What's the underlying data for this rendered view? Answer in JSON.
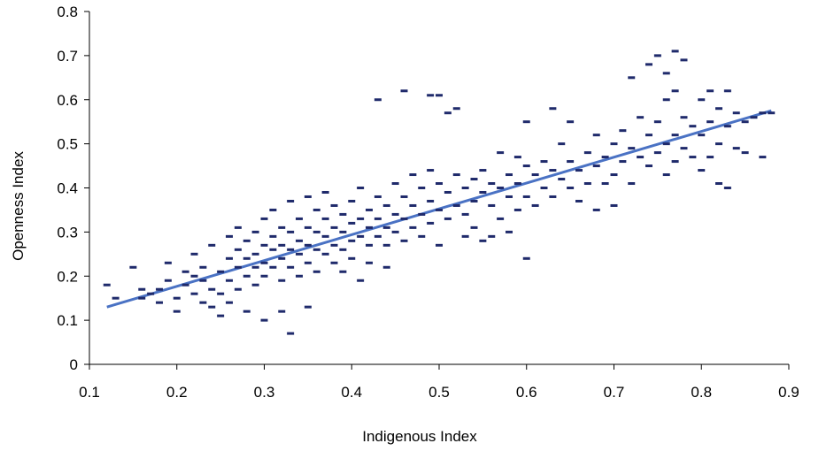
{
  "chart_data": {
    "type": "scatter",
    "xlabel": "Indigenous Index",
    "ylabel": "Openness Index",
    "xlim": [
      0.1,
      0.9
    ],
    "ylim": [
      0,
      0.8
    ],
    "x_ticks": [
      0.1,
      0.2,
      0.3,
      0.4,
      0.5,
      0.6,
      0.7,
      0.8,
      0.9
    ],
    "x_tick_labels": [
      "0.1",
      "0.2",
      "0.3",
      "0.4",
      "0.5",
      "0.6",
      "0.7",
      "0.8",
      "0.9"
    ],
    "y_ticks": [
      0,
      0.1,
      0.2,
      0.3,
      0.4,
      0.5,
      0.6,
      0.7,
      0.8
    ],
    "y_tick_labels": [
      "0",
      "0.1",
      "0.2",
      "0.3",
      "0.4",
      "0.5",
      "0.6",
      "0.7",
      "0.8"
    ],
    "grid": false,
    "legend": "none",
    "point_color": "#1f2a6b",
    "trend_color": "#4a72c4",
    "trendline": {
      "x": [
        0.12,
        0.88
      ],
      "y": [
        0.13,
        0.575
      ]
    },
    "points": [
      [
        0.12,
        0.18
      ],
      [
        0.13,
        0.15
      ],
      [
        0.15,
        0.22
      ],
      [
        0.16,
        0.17
      ],
      [
        0.16,
        0.15
      ],
      [
        0.17,
        0.16
      ],
      [
        0.18,
        0.17
      ],
      [
        0.18,
        0.14
      ],
      [
        0.19,
        0.23
      ],
      [
        0.19,
        0.19
      ],
      [
        0.2,
        0.15
      ],
      [
        0.2,
        0.12
      ],
      [
        0.21,
        0.21
      ],
      [
        0.21,
        0.18
      ],
      [
        0.22,
        0.2
      ],
      [
        0.22,
        0.16
      ],
      [
        0.22,
        0.25
      ],
      [
        0.23,
        0.19
      ],
      [
        0.23,
        0.14
      ],
      [
        0.23,
        0.22
      ],
      [
        0.24,
        0.17
      ],
      [
        0.24,
        0.13
      ],
      [
        0.24,
        0.27
      ],
      [
        0.25,
        0.21
      ],
      [
        0.25,
        0.16
      ],
      [
        0.25,
        0.11
      ],
      [
        0.26,
        0.24
      ],
      [
        0.26,
        0.19
      ],
      [
        0.26,
        0.29
      ],
      [
        0.26,
        0.14
      ],
      [
        0.27,
        0.31
      ],
      [
        0.27,
        0.22
      ],
      [
        0.27,
        0.26
      ],
      [
        0.27,
        0.17
      ],
      [
        0.28,
        0.28
      ],
      [
        0.28,
        0.2
      ],
      [
        0.28,
        0.24
      ],
      [
        0.28,
        0.12
      ],
      [
        0.29,
        0.3
      ],
      [
        0.29,
        0.25
      ],
      [
        0.29,
        0.22
      ],
      [
        0.29,
        0.18
      ],
      [
        0.3,
        0.33
      ],
      [
        0.3,
        0.27
      ],
      [
        0.3,
        0.23
      ],
      [
        0.3,
        0.2
      ],
      [
        0.3,
        0.1
      ],
      [
        0.31,
        0.29
      ],
      [
        0.31,
        0.26
      ],
      [
        0.31,
        0.22
      ],
      [
        0.31,
        0.35
      ],
      [
        0.32,
        0.31
      ],
      [
        0.32,
        0.27
      ],
      [
        0.32,
        0.24
      ],
      [
        0.32,
        0.19
      ],
      [
        0.32,
        0.12
      ],
      [
        0.33,
        0.37
      ],
      [
        0.33,
        0.3
      ],
      [
        0.33,
        0.26
      ],
      [
        0.33,
        0.22
      ],
      [
        0.33,
        0.07
      ],
      [
        0.34,
        0.33
      ],
      [
        0.34,
        0.28
      ],
      [
        0.34,
        0.25
      ],
      [
        0.34,
        0.2
      ],
      [
        0.35,
        0.38
      ],
      [
        0.35,
        0.31
      ],
      [
        0.35,
        0.27
      ],
      [
        0.35,
        0.23
      ],
      [
        0.35,
        0.13
      ],
      [
        0.36,
        0.35
      ],
      [
        0.36,
        0.3
      ],
      [
        0.36,
        0.26
      ],
      [
        0.36,
        0.21
      ],
      [
        0.37,
        0.33
      ],
      [
        0.37,
        0.29
      ],
      [
        0.37,
        0.25
      ],
      [
        0.37,
        0.39
      ],
      [
        0.38,
        0.31
      ],
      [
        0.38,
        0.27
      ],
      [
        0.38,
        0.23
      ],
      [
        0.38,
        0.36
      ],
      [
        0.39,
        0.34
      ],
      [
        0.39,
        0.3
      ],
      [
        0.39,
        0.26
      ],
      [
        0.39,
        0.21
      ],
      [
        0.4,
        0.37
      ],
      [
        0.4,
        0.32
      ],
      [
        0.4,
        0.28
      ],
      [
        0.4,
        0.24
      ],
      [
        0.41,
        0.4
      ],
      [
        0.41,
        0.33
      ],
      [
        0.41,
        0.29
      ],
      [
        0.41,
        0.19
      ],
      [
        0.42,
        0.35
      ],
      [
        0.42,
        0.31
      ],
      [
        0.42,
        0.27
      ],
      [
        0.42,
        0.23
      ],
      [
        0.43,
        0.6
      ],
      [
        0.43,
        0.38
      ],
      [
        0.43,
        0.33
      ],
      [
        0.43,
        0.29
      ],
      [
        0.44,
        0.36
      ],
      [
        0.44,
        0.31
      ],
      [
        0.44,
        0.27
      ],
      [
        0.44,
        0.22
      ],
      [
        0.45,
        0.41
      ],
      [
        0.45,
        0.34
      ],
      [
        0.45,
        0.3
      ],
      [
        0.46,
        0.62
      ],
      [
        0.46,
        0.38
      ],
      [
        0.46,
        0.33
      ],
      [
        0.46,
        0.28
      ],
      [
        0.47,
        0.43
      ],
      [
        0.47,
        0.36
      ],
      [
        0.47,
        0.31
      ],
      [
        0.48,
        0.4
      ],
      [
        0.48,
        0.34
      ],
      [
        0.48,
        0.29
      ],
      [
        0.49,
        0.61
      ],
      [
        0.49,
        0.44
      ],
      [
        0.49,
        0.37
      ],
      [
        0.49,
        0.32
      ],
      [
        0.5,
        0.61
      ],
      [
        0.5,
        0.41
      ],
      [
        0.5,
        0.35
      ],
      [
        0.5,
        0.27
      ],
      [
        0.51,
        0.57
      ],
      [
        0.51,
        0.39
      ],
      [
        0.51,
        0.33
      ],
      [
        0.52,
        0.58
      ],
      [
        0.52,
        0.43
      ],
      [
        0.52,
        0.36
      ],
      [
        0.53,
        0.4
      ],
      [
        0.53,
        0.34
      ],
      [
        0.53,
        0.29
      ],
      [
        0.54,
        0.42
      ],
      [
        0.54,
        0.37
      ],
      [
        0.54,
        0.31
      ],
      [
        0.55,
        0.44
      ],
      [
        0.55,
        0.39
      ],
      [
        0.55,
        0.28
      ],
      [
        0.56,
        0.41
      ],
      [
        0.56,
        0.36
      ],
      [
        0.56,
        0.29
      ],
      [
        0.57,
        0.48
      ],
      [
        0.57,
        0.4
      ],
      [
        0.57,
        0.33
      ],
      [
        0.58,
        0.43
      ],
      [
        0.58,
        0.38
      ],
      [
        0.58,
        0.3
      ],
      [
        0.59,
        0.47
      ],
      [
        0.59,
        0.41
      ],
      [
        0.59,
        0.35
      ],
      [
        0.6,
        0.55
      ],
      [
        0.6,
        0.45
      ],
      [
        0.6,
        0.38
      ],
      [
        0.6,
        0.24
      ],
      [
        0.61,
        0.43
      ],
      [
        0.61,
        0.36
      ],
      [
        0.62,
        0.46
      ],
      [
        0.62,
        0.4
      ],
      [
        0.63,
        0.58
      ],
      [
        0.63,
        0.44
      ],
      [
        0.63,
        0.38
      ],
      [
        0.64,
        0.5
      ],
      [
        0.64,
        0.42
      ],
      [
        0.65,
        0.55
      ],
      [
        0.65,
        0.46
      ],
      [
        0.65,
        0.4
      ],
      [
        0.66,
        0.44
      ],
      [
        0.66,
        0.37
      ],
      [
        0.67,
        0.48
      ],
      [
        0.67,
        0.41
      ],
      [
        0.68,
        0.52
      ],
      [
        0.68,
        0.45
      ],
      [
        0.68,
        0.35
      ],
      [
        0.69,
        0.47
      ],
      [
        0.69,
        0.41
      ],
      [
        0.7,
        0.5
      ],
      [
        0.7,
        0.43
      ],
      [
        0.7,
        0.36
      ],
      [
        0.71,
        0.53
      ],
      [
        0.71,
        0.46
      ],
      [
        0.72,
        0.65
      ],
      [
        0.72,
        0.49
      ],
      [
        0.72,
        0.41
      ],
      [
        0.73,
        0.56
      ],
      [
        0.73,
        0.47
      ],
      [
        0.74,
        0.68
      ],
      [
        0.74,
        0.52
      ],
      [
        0.74,
        0.45
      ],
      [
        0.75,
        0.7
      ],
      [
        0.75,
        0.55
      ],
      [
        0.75,
        0.48
      ],
      [
        0.76,
        0.66
      ],
      [
        0.76,
        0.6
      ],
      [
        0.76,
        0.5
      ],
      [
        0.76,
        0.43
      ],
      [
        0.77,
        0.71
      ],
      [
        0.77,
        0.62
      ],
      [
        0.77,
        0.52
      ],
      [
        0.77,
        0.46
      ],
      [
        0.78,
        0.69
      ],
      [
        0.78,
        0.56
      ],
      [
        0.78,
        0.49
      ],
      [
        0.79,
        0.54
      ],
      [
        0.79,
        0.47
      ],
      [
        0.8,
        0.6
      ],
      [
        0.8,
        0.52
      ],
      [
        0.8,
        0.44
      ],
      [
        0.81,
        0.62
      ],
      [
        0.81,
        0.55
      ],
      [
        0.81,
        0.47
      ],
      [
        0.82,
        0.58
      ],
      [
        0.82,
        0.5
      ],
      [
        0.82,
        0.41
      ],
      [
        0.83,
        0.62
      ],
      [
        0.83,
        0.54
      ],
      [
        0.83,
        0.4
      ],
      [
        0.84,
        0.57
      ],
      [
        0.84,
        0.49
      ],
      [
        0.85,
        0.55
      ],
      [
        0.85,
        0.48
      ],
      [
        0.86,
        0.56
      ],
      [
        0.87,
        0.57
      ],
      [
        0.87,
        0.47
      ],
      [
        0.88,
        0.57
      ]
    ]
  }
}
